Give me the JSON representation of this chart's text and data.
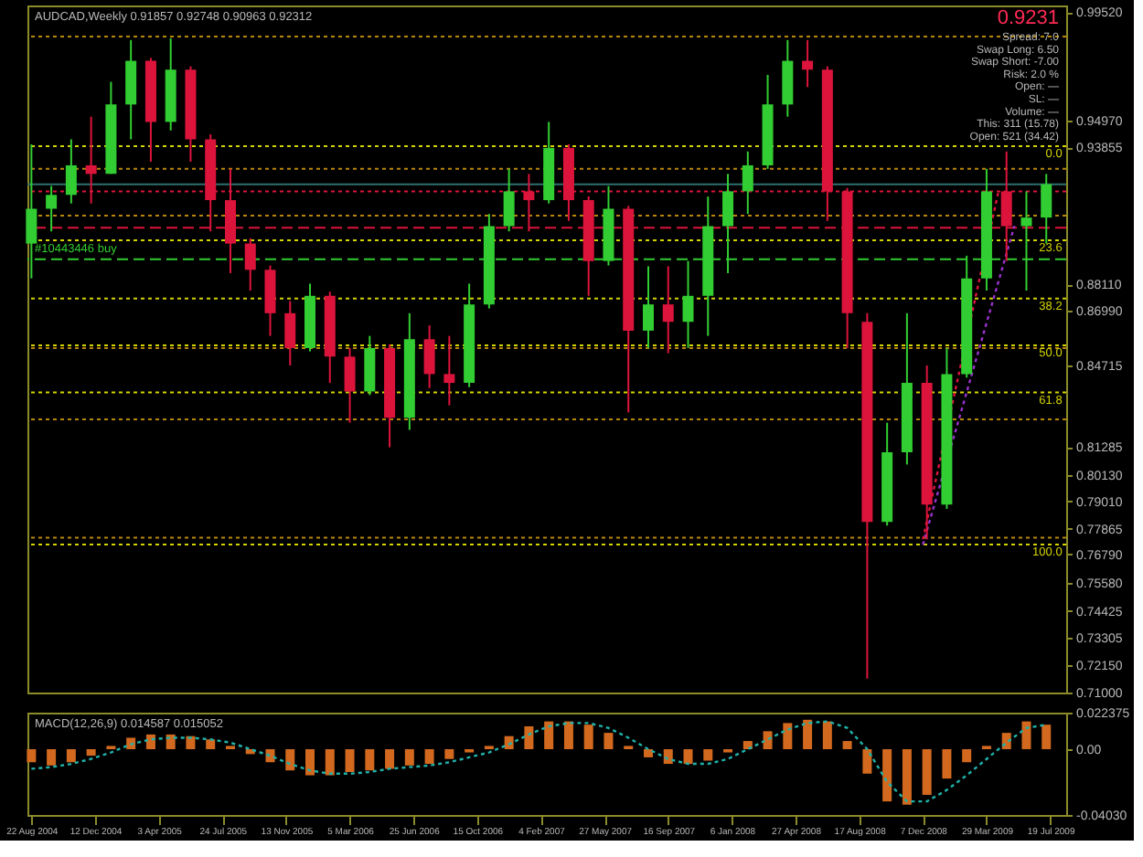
{
  "chart_data": [
    {
      "type": "candlestick",
      "title": "AUDCAD,Weekly  0.91857 0.92748 0.90963 0.92312",
      "x": [
        "2004-08-22",
        "2004-09-26",
        "2004-10-31",
        "2004-12-05",
        "2005-01-09",
        "2005-02-13",
        "2005-03-20",
        "2005-04-24",
        "2005-05-29",
        "2005-07-03",
        "2005-08-07",
        "2005-09-11",
        "2005-10-16",
        "2005-11-20",
        "2005-12-25",
        "2006-01-29",
        "2006-03-05",
        "2006-04-09",
        "2006-05-14",
        "2006-06-18",
        "2006-07-23",
        "2006-08-27",
        "2006-10-01",
        "2006-11-05",
        "2006-12-10",
        "2007-01-14",
        "2007-02-18",
        "2007-03-25",
        "2007-04-29",
        "2007-06-03",
        "2007-07-08",
        "2007-08-12",
        "2007-09-16",
        "2007-10-21",
        "2007-11-25",
        "2007-12-30",
        "2008-02-03",
        "2008-03-09",
        "2008-04-13",
        "2008-05-18",
        "2008-06-22",
        "2008-07-27",
        "2008-08-31",
        "2008-10-05",
        "2008-11-09",
        "2008-12-14",
        "2009-01-18",
        "2009-02-22",
        "2009-03-29",
        "2009-05-03",
        "2009-06-07",
        "2009-07-12"
      ],
      "ohlc": [
        [
          0.8982,
          0.9398,
          0.8836,
          0.9128
        ],
        [
          0.9128,
          0.9223,
          0.9033,
          0.9186
        ],
        [
          0.9186,
          0.9419,
          0.915,
          0.931
        ],
        [
          0.931,
          0.9514,
          0.915,
          0.9274
        ],
        [
          0.9274,
          0.966,
          0.9274,
          0.9565
        ],
        [
          0.9565,
          0.9835,
          0.9419,
          0.9748
        ],
        [
          0.9748,
          0.976,
          0.9325,
          0.9492
        ],
        [
          0.9492,
          0.9843,
          0.9456,
          0.9711
        ],
        [
          0.9711,
          0.9725,
          0.9325,
          0.9419
        ],
        [
          0.9419,
          0.944,
          0.9033,
          0.9164
        ],
        [
          0.9164,
          0.9295,
          0.8858,
          0.8982
        ],
        [
          0.8982,
          0.9004,
          0.8785,
          0.8872
        ],
        [
          0.8872,
          0.889,
          0.8595,
          0.869
        ],
        [
          0.869,
          0.8741,
          0.8471,
          0.8544
        ],
        [
          0.8544,
          0.8814,
          0.853,
          0.8763
        ],
        [
          0.8763,
          0.878,
          0.8398,
          0.8508
        ],
        [
          0.8508,
          0.8544,
          0.8231,
          0.8362
        ],
        [
          0.8362,
          0.8595,
          0.8347,
          0.8544
        ],
        [
          0.8544,
          0.856,
          0.8128,
          0.8252
        ],
        [
          0.8252,
          0.869,
          0.8201,
          0.8581
        ],
        [
          0.8581,
          0.8639,
          0.8376,
          0.8435
        ],
        [
          0.8435,
          0.8595,
          0.8304,
          0.8398
        ],
        [
          0.8398,
          0.8814,
          0.838,
          0.8727
        ],
        [
          0.8727,
          0.9106,
          0.871,
          0.9055
        ],
        [
          0.9055,
          0.9295,
          0.9033,
          0.9201
        ],
        [
          0.9201,
          0.9274,
          0.9033,
          0.9164
        ],
        [
          0.9164,
          0.9492,
          0.915,
          0.9383
        ],
        [
          0.9383,
          0.9398,
          0.9077,
          0.9164
        ],
        [
          0.9164,
          0.918,
          0.8763,
          0.8909
        ],
        [
          0.8909,
          0.9223,
          0.889,
          0.9128
        ],
        [
          0.9128,
          0.914,
          0.8274,
          0.8617
        ],
        [
          0.8617,
          0.8887,
          0.8544,
          0.8727
        ],
        [
          0.8727,
          0.8887,
          0.8522,
          0.8654
        ],
        [
          0.8654,
          0.8909,
          0.8544,
          0.8763
        ],
        [
          0.8763,
          0.9179,
          0.8595,
          0.9055
        ],
        [
          0.9055,
          0.9274,
          0.8858,
          0.9201
        ],
        [
          0.9201,
          0.9368,
          0.9106,
          0.931
        ],
        [
          0.931,
          0.9689,
          0.9295,
          0.9565
        ],
        [
          0.9565,
          0.9835,
          0.9514,
          0.9748
        ],
        [
          0.9748,
          0.9835,
          0.9638,
          0.9711
        ],
        [
          0.9711,
          0.9725,
          0.9077,
          0.9201
        ],
        [
          0.9201,
          0.9215,
          0.8544,
          0.869
        ],
        [
          0.8654,
          0.869,
          0.7158,
          0.7815
        ],
        [
          0.7815,
          0.8231,
          0.78,
          0.8107
        ],
        [
          0.8107,
          0.869,
          0.8056,
          0.8398
        ],
        [
          0.8398,
          0.8471,
          0.7742,
          0.7888
        ],
        [
          0.7888,
          0.8544,
          0.787,
          0.8435
        ],
        [
          0.8435,
          0.8931,
          0.842,
          0.8836
        ],
        [
          0.8836,
          0.9295,
          0.8785,
          0.9201
        ],
        [
          0.9201,
          0.9368,
          0.8909,
          0.9055
        ],
        [
          0.9055,
          0.9201,
          0.8785,
          0.9091
        ],
        [
          0.9091,
          0.9274,
          0.8982,
          0.9231
        ]
      ],
      "colors": [
        "#32cd32",
        "#32cd32",
        "#32cd32",
        "#dc143c",
        "#32cd32",
        "#32cd32",
        "#dc143c",
        "#32cd32",
        "#dc143c",
        "#dc143c",
        "#dc143c",
        "#dc143c",
        "#dc143c",
        "#dc143c",
        "#32cd32",
        "#dc143c",
        "#dc143c",
        "#32cd32",
        "#dc143c",
        "#32cd32",
        "#dc143c",
        "#dc143c",
        "#32cd32",
        "#32cd32",
        "#32cd32",
        "#dc143c",
        "#32cd32",
        "#dc143c",
        "#dc143c",
        "#32cd32",
        "#dc143c",
        "#32cd32",
        "#dc143c",
        "#32cd32",
        "#32cd32",
        "#32cd32",
        "#32cd32",
        "#32cd32",
        "#32cd32",
        "#dc143c",
        "#dc143c",
        "#dc143c",
        "#dc143c",
        "#32cd32",
        "#32cd32",
        "#dc143c",
        "#32cd32",
        "#32cd32",
        "#32cd32",
        "#dc143c",
        "#32cd32",
        "#32cd32"
      ],
      "series": [
        {
          "type": "line",
          "color": "#9932cc",
          "line_style": "dotted",
          "x": [
            "2008-12-07",
            "2009-05-17"
          ],
          "values": [
            0.772,
            0.9056
          ]
        },
        {
          "type": "line",
          "color": "#dc143c",
          "line_style": "dotted",
          "x": [
            "2008-12-07",
            "2009-04-19"
          ],
          "values": [
            0.7742,
            0.9201
          ]
        }
      ],
      "ref_lines": [
        {
          "axis": "y",
          "value": 0.985,
          "color": "#b8860b",
          "line_style": "dotted"
        },
        {
          "axis": "y",
          "value": 0.9295,
          "color": "#b8860b",
          "line_style": "dotted"
        },
        {
          "axis": "y",
          "value": 0.9099,
          "color": "#b8860b",
          "line_style": "dotted"
        },
        {
          "axis": "y",
          "value": 0.8544,
          "color": "#b8860b",
          "line_style": "dotted"
        },
        {
          "axis": "y",
          "value": 0.8245,
          "color": "#b8860b",
          "line_style": "dotted"
        },
        {
          "axis": "y",
          "value": 0.7749,
          "color": "#b8860b",
          "line_style": "dotted"
        },
        {
          "axis": "y",
          "value": 0.923,
          "color": "#2f6f6f",
          "line_style": "solid"
        },
        {
          "axis": "y",
          "value": 0.9201,
          "color": "#dc143c",
          "line_style": "dotted"
        },
        {
          "axis": "y",
          "value": 0.9048,
          "color": "#dc143c",
          "line_style": "dashed"
        },
        {
          "axis": "y",
          "value": 0.8916,
          "label": "#10443446 buy",
          "color": "#32cd32",
          "line_style": "dashed"
        },
        {
          "axis": "y",
          "value": 0.939,
          "color": "#d4d400",
          "line_style": "dotted"
        },
        {
          "axis": "y",
          "value": 0.8996,
          "color": "#d4d400",
          "line_style": "dotted"
        },
        {
          "axis": "y",
          "value": 0.8752,
          "color": "#d4d400",
          "line_style": "dotted"
        },
        {
          "axis": "y",
          "value": 0.8555,
          "color": "#d4d400",
          "line_style": "dotted"
        },
        {
          "axis": "y",
          "value": 0.8358,
          "color": "#d4d400",
          "line_style": "dotted"
        },
        {
          "axis": "y",
          "value": 0.772,
          "color": "#d4d400",
          "line_style": "dotted"
        }
      ],
      "annotations": [
        "0.9231",
        "Spread: 7.0",
        "Swap Long: 6.50",
        "Swap Short: -7.00",
        "Risk: 2.0 %",
        "Open: —",
        "SL: —",
        "Volume: —",
        "This: 311 (15.78)",
        "Open: 521 (34.42)",
        {
          "text": "0.0",
          "x": "2009-08-09",
          "y": 0.939
        },
        {
          "text": "23.6",
          "x": "2009-08-09",
          "y": 0.8996
        },
        {
          "text": "38.2",
          "x": "2009-08-09",
          "y": 0.8752
        },
        {
          "text": "50.0",
          "x": "2009-08-09",
          "y": 0.8555
        },
        {
          "text": "61.8",
          "x": "2009-08-09",
          "y": 0.8358
        },
        {
          "text": "100.0",
          "x": "2009-08-09",
          "y": 0.772
        }
      ],
      "xlim": [
        "2004-08-15",
        "2009-08-16"
      ],
      "ylim": [
        0.71,
        0.998
      ],
      "yticks": [
        {
          "value": 0.9952,
          "label": "0.99520"
        },
        {
          "value": 0.9497,
          "label": "0.94970"
        },
        {
          "value": 0.93855,
          "label": "0.93855"
        },
        {
          "value": 0.8811,
          "label": "0.88110"
        },
        {
          "value": 0.8699,
          "label": "0.86990"
        },
        {
          "value": 0.84715,
          "label": "0.84715"
        },
        {
          "value": 0.81285,
          "label": "0.81285"
        },
        {
          "value": 0.8013,
          "label": "0.80130"
        },
        {
          "value": 0.7901,
          "label": "0.79010"
        },
        {
          "value": 0.77865,
          "label": "0.77865"
        },
        {
          "value": 0.7679,
          "label": "0.76790"
        },
        {
          "value": 0.7558,
          "label": "0.75580"
        },
        {
          "value": 0.74425,
          "label": "0.74425"
        },
        {
          "value": 0.73305,
          "label": "0.73305"
        },
        {
          "value": 0.7215,
          "label": "0.72150"
        },
        {
          "value": 0.71,
          "label": "0.71000"
        }
      ],
      "tick_labels": "y"
    },
    {
      "type": "bar",
      "title": "MACD(12,26,9) 0.014587 0.015052",
      "x": [
        "2004-08-22",
        "2004-09-26",
        "2004-10-31",
        "2004-12-05",
        "2005-01-09",
        "2005-02-13",
        "2005-03-20",
        "2005-04-24",
        "2005-05-29",
        "2005-07-03",
        "2005-08-07",
        "2005-09-11",
        "2005-10-16",
        "2005-11-20",
        "2005-12-25",
        "2006-01-29",
        "2006-03-05",
        "2006-04-09",
        "2006-05-14",
        "2006-06-18",
        "2006-07-23",
        "2006-08-27",
        "2006-10-01",
        "2006-11-05",
        "2006-12-10",
        "2007-01-14",
        "2007-02-18",
        "2007-03-25",
        "2007-04-29",
        "2007-06-03",
        "2007-07-08",
        "2007-08-12",
        "2007-09-16",
        "2007-10-21",
        "2007-11-25",
        "2007-12-30",
        "2008-02-03",
        "2008-03-09",
        "2008-04-13",
        "2008-05-18",
        "2008-06-22",
        "2008-07-27",
        "2008-08-31",
        "2008-10-05",
        "2008-11-09",
        "2008-12-14",
        "2009-01-18",
        "2009-02-22",
        "2009-03-29",
        "2009-05-03",
        "2009-06-07",
        "2009-07-12"
      ],
      "series": [
        {
          "type": "bar",
          "color": "#d2691e",
          "values": [
            -0.008,
            -0.01,
            -0.008,
            -0.004,
            0.002,
            0.007,
            0.009,
            0.009,
            0.008,
            0.006,
            0.002,
            -0.003,
            -0.008,
            -0.013,
            -0.016,
            -0.016,
            -0.014,
            -0.013,
            -0.012,
            -0.01,
            -0.009,
            -0.006,
            -0.002,
            0.002,
            0.008,
            0.014,
            0.017,
            0.017,
            0.015,
            0.01,
            0.002,
            -0.005,
            -0.009,
            -0.009,
            -0.007,
            -0.002,
            0.005,
            0.011,
            0.016,
            0.018,
            0.017,
            0.005,
            -0.015,
            -0.032,
            -0.034,
            -0.028,
            -0.018,
            -0.008,
            0.002,
            0.01,
            0.017,
            0.015
          ]
        },
        {
          "type": "line",
          "color": "#20b2aa",
          "line_style": "dotted",
          "values": [
            -0.012,
            -0.011,
            -0.009,
            -0.006,
            -0.002,
            0.003,
            0.006,
            0.007,
            0.007,
            0.006,
            0.004,
            0.0,
            -0.004,
            -0.009,
            -0.013,
            -0.015,
            -0.015,
            -0.014,
            -0.012,
            -0.011,
            -0.01,
            -0.008,
            -0.005,
            -0.002,
            0.003,
            0.009,
            0.014,
            0.016,
            0.016,
            0.013,
            0.007,
            0.0,
            -0.006,
            -0.009,
            -0.009,
            -0.006,
            0.0,
            0.006,
            0.012,
            0.016,
            0.017,
            0.013,
            0.0,
            -0.02,
            -0.032,
            -0.032,
            -0.025,
            -0.016,
            -0.006,
            0.004,
            0.013,
            0.015
          ]
        }
      ],
      "xlim": [
        "2004-08-15",
        "2009-08-16"
      ],
      "xticks": [
        {
          "value": "2004-08-22",
          "label": "22 Aug 2004"
        },
        {
          "value": "2004-12-12",
          "label": "12 Dec 2004"
        },
        {
          "value": "2005-04-03",
          "label": "3 Apr 2005"
        },
        {
          "value": "2005-07-24",
          "label": "24 Jul 2005"
        },
        {
          "value": "2005-11-13",
          "label": "13 Nov 2005"
        },
        {
          "value": "2006-03-05",
          "label": "5 Mar 2006"
        },
        {
          "value": "2006-06-25",
          "label": "25 Jun 2006"
        },
        {
          "value": "2006-10-15",
          "label": "15 Oct 2006"
        },
        {
          "value": "2007-02-04",
          "label": "4 Feb 2007"
        },
        {
          "value": "2007-05-27",
          "label": "27 May 2007"
        },
        {
          "value": "2007-09-16",
          "label": "16 Sep 2007"
        },
        {
          "value": "2008-01-06",
          "label": "6 Jan 2008"
        },
        {
          "value": "2008-04-27",
          "label": "27 Apr 2008"
        },
        {
          "value": "2008-08-17",
          "label": "17 Aug 2008"
        },
        {
          "value": "2008-12-07",
          "label": "7 Dec 2008"
        },
        {
          "value": "2009-03-29",
          "label": "29 Mar 2009"
        },
        {
          "value": "2009-07-19",
          "label": "19 Jul 2009"
        }
      ],
      "ylim": [
        -0.0403,
        0.022375
      ],
      "yticks": [
        {
          "value": 0.022375,
          "label": "0.022375"
        },
        {
          "value": 0,
          "label": "0.00"
        },
        {
          "value": -0.0403,
          "label": "-0.04030"
        }
      ]
    }
  ]
}
